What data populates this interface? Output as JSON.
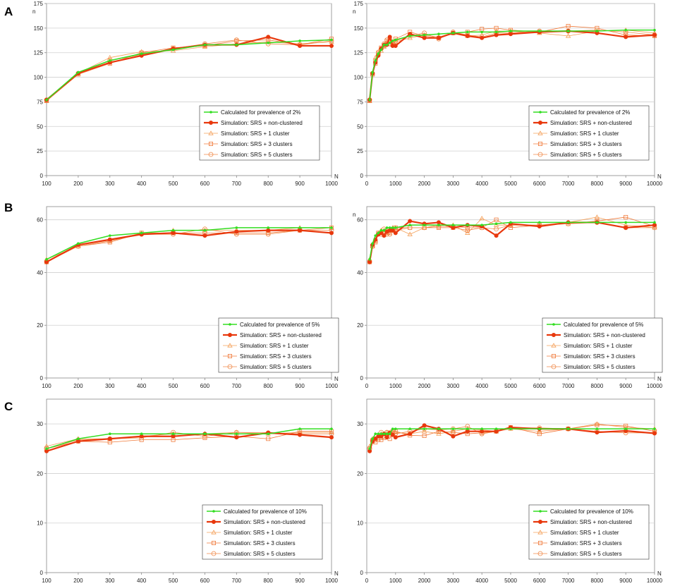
{
  "figure": {
    "panel_letters": [
      "A",
      "B",
      "C"
    ],
    "series_names": [
      "calculated",
      "srs_nonclustered",
      "srs_1cluster",
      "srs_3clusters",
      "srs_5clusters"
    ],
    "colors": {
      "calculated": "#33dd22",
      "srs_nonclustered": "#e8380d",
      "srs_1cluster": "#f4a05a",
      "srs_3clusters": "#f07a3a",
      "srs_5clusters": "#f08a4a",
      "grid": "#d0d0d0",
      "axis": "#888888"
    }
  },
  "chart_data": [
    {
      "type": "line",
      "panel": "A",
      "xlabel": "N",
      "ylabel": "n",
      "xlim": [
        100,
        1000
      ],
      "ylim": [
        0,
        175
      ],
      "xticks": [
        100,
        200,
        300,
        400,
        500,
        600,
        700,
        800,
        900,
        1000
      ],
      "yticks": [
        0,
        25,
        50,
        75,
        100,
        125,
        150,
        175
      ],
      "grid": true,
      "legend_position": "center-right",
      "x": [
        100,
        200,
        300,
        400,
        500,
        600,
        700,
        800,
        900,
        1000
      ],
      "series": [
        {
          "name": "Calculated for prevalence of 2%",
          "values": [
            77,
            105,
            117,
            124,
            128,
            133,
            133,
            135,
            137,
            138
          ]
        },
        {
          "name": "Simulation: SRS + non-clustered",
          "values": [
            77,
            104,
            115,
            122,
            129,
            133,
            133,
            141,
            132,
            132
          ]
        },
        {
          "name": "Simulation: SRS + 1 cluster",
          "values": [
            76,
            104,
            120,
            126,
            127,
            131,
            134,
            136,
            134,
            136
          ]
        },
        {
          "name": "Simulation: SRS + 3 clusters",
          "values": [
            76,
            103,
            114,
            125,
            130,
            132,
            137,
            138,
            133,
            139
          ]
        },
        {
          "name": "Simulation: SRS + 5 clusters",
          "values": [
            77,
            104,
            117,
            123,
            129,
            134,
            138,
            134,
            133,
            137
          ]
        }
      ]
    },
    {
      "type": "line",
      "panel": "A",
      "xlabel": "N",
      "ylabel": "n",
      "xlim": [
        0,
        10000
      ],
      "ylim": [
        0,
        175
      ],
      "xticks": [
        0,
        1000,
        2000,
        3000,
        4000,
        5000,
        6000,
        7000,
        8000,
        9000,
        10000
      ],
      "yticks": [
        0,
        25,
        50,
        75,
        100,
        125,
        150,
        175
      ],
      "grid": true,
      "legend_position": "center-right",
      "x": [
        100,
        200,
        300,
        400,
        500,
        600,
        700,
        800,
        900,
        1000,
        1500,
        2000,
        2500,
        3000,
        3500,
        4000,
        4500,
        5000,
        6000,
        7000,
        8000,
        9000,
        10000
      ],
      "series": [
        {
          "name": "Calculated for prevalence of 2%",
          "values": [
            77,
            105,
            117,
            124,
            128,
            133,
            133,
            135,
            137,
            138,
            142,
            143,
            144,
            145,
            146,
            146,
            146,
            147,
            147,
            147,
            147,
            148,
            148
          ]
        },
        {
          "name": "Simulation: SRS + non-clustered",
          "values": [
            77,
            104,
            115,
            122,
            129,
            133,
            133,
            141,
            132,
            132,
            144,
            140,
            140,
            145,
            142,
            140,
            143,
            144,
            146,
            147,
            145,
            141,
            143
          ]
        },
        {
          "name": "Simulation: SRS + 1 cluster",
          "values": [
            76,
            104,
            120,
            126,
            127,
            131,
            134,
            136,
            134,
            136,
            140,
            143,
            141,
            145,
            142,
            143,
            147,
            147,
            145,
            142,
            147,
            148,
            145
          ]
        },
        {
          "name": "Simulation: SRS + 3 clusters",
          "values": [
            76,
            103,
            114,
            125,
            130,
            132,
            137,
            138,
            133,
            139,
            146,
            142,
            140,
            145,
            146,
            149,
            150,
            148,
            146,
            152,
            150,
            143,
            142
          ]
        },
        {
          "name": "Simulation: SRS + 5 clusters",
          "values": [
            77,
            104,
            117,
            123,
            129,
            134,
            138,
            134,
            133,
            137,
            142,
            145,
            139,
            146,
            143,
            141,
            145,
            145,
            147,
            147,
            148,
            146,
            143
          ]
        }
      ]
    },
    {
      "type": "line",
      "panel": "B",
      "xlabel": "N",
      "ylabel": "",
      "xlim": [
        100,
        1000
      ],
      "ylim": [
        0,
        65
      ],
      "xticks": [
        100,
        200,
        300,
        400,
        500,
        600,
        700,
        800,
        900,
        1000
      ],
      "yticks": [
        0,
        20,
        40,
        60
      ],
      "grid": true,
      "legend_position": "bottom-right",
      "x": [
        100,
        200,
        300,
        400,
        500,
        600,
        700,
        800,
        900,
        1000
      ],
      "series": [
        {
          "name": "Calculated for prevalence of 5%",
          "values": [
            45,
            51,
            54,
            55,
            56,
            56,
            57,
            57,
            57,
            57
          ]
        },
        {
          "name": "Simulation: SRS + non-clustered",
          "values": [
            44,
            50.5,
            52.5,
            54.5,
            55,
            54,
            55.5,
            56,
            56,
            55
          ]
        },
        {
          "name": "Simulation: SRS + 1 cluster",
          "values": [
            45,
            50,
            52,
            55,
            56,
            56,
            56,
            56,
            57,
            57
          ]
        },
        {
          "name": "Simulation: SRS + 3 clusters",
          "values": [
            44,
            50,
            51.5,
            55,
            55,
            55,
            55,
            55,
            56,
            57
          ]
        },
        {
          "name": "Simulation: SRS + 5 clusters",
          "values": [
            44,
            50,
            52,
            54.5,
            54.5,
            56.5,
            54.5,
            54.5,
            56,
            56
          ]
        }
      ]
    },
    {
      "type": "line",
      "panel": "B",
      "xlabel": "N",
      "ylabel": "n",
      "xlim": [
        0,
        10000
      ],
      "ylim": [
        0,
        65
      ],
      "xticks": [
        0,
        1000,
        2000,
        3000,
        4000,
        5000,
        6000,
        7000,
        8000,
        9000,
        10000
      ],
      "yticks": [
        0,
        20,
        40,
        60
      ],
      "grid": true,
      "legend_position": "bottom-right",
      "x": [
        100,
        200,
        300,
        400,
        500,
        600,
        700,
        800,
        900,
        1000,
        1500,
        2000,
        2500,
        3000,
        3500,
        4000,
        4500,
        5000,
        6000,
        7000,
        8000,
        9000,
        10000
      ],
      "series": [
        {
          "name": "Calculated for prevalence of 5%",
          "values": [
            45,
            51,
            54,
            55,
            56,
            56,
            57,
            57,
            57,
            57,
            58,
            58,
            58,
            58,
            58,
            58,
            58.5,
            59,
            59,
            59,
            59,
            59,
            59
          ]
        },
        {
          "name": "Simulation: SRS + non-clustered",
          "values": [
            44,
            50.5,
            52.5,
            54.5,
            55,
            54,
            55.5,
            56,
            56,
            55,
            59.5,
            58.5,
            59,
            57,
            58,
            57.5,
            54,
            58.5,
            57.5,
            59,
            59,
            57,
            58
          ]
        },
        {
          "name": "Simulation: SRS + 1 cluster",
          "values": [
            45,
            50,
            52,
            55,
            56,
            56,
            56,
            56,
            57,
            57,
            54.5,
            57,
            58,
            58,
            55,
            60.5,
            58,
            58,
            58,
            59,
            61,
            58,
            57
          ]
        },
        {
          "name": "Simulation: SRS + 3 clusters",
          "values": [
            44,
            50,
            51.5,
            55,
            55,
            55,
            55,
            55,
            56,
            57,
            57,
            57,
            57,
            57,
            56,
            57,
            60,
            57,
            58,
            58.5,
            59.5,
            61,
            57.5
          ]
        },
        {
          "name": "Simulation: SRS + 5 clusters",
          "values": [
            44,
            50,
            52,
            54.5,
            54.5,
            56.5,
            54.5,
            54.5,
            56,
            56,
            57,
            57,
            57.5,
            57.5,
            57,
            57,
            56.5,
            58,
            58,
            58.5,
            59,
            57,
            57
          ]
        }
      ]
    },
    {
      "type": "line",
      "panel": "C",
      "xlabel": "N",
      "ylabel": "",
      "xlim": [
        100,
        1000
      ],
      "ylim": [
        0,
        35
      ],
      "xticks": [
        100,
        200,
        300,
        400,
        500,
        600,
        700,
        800,
        900,
        1000
      ],
      "yticks": [
        0,
        10,
        20,
        30
      ],
      "grid": true,
      "legend_position": "bottom-right",
      "x": [
        100,
        200,
        300,
        400,
        500,
        600,
        700,
        800,
        900,
        1000
      ],
      "series": [
        {
          "name": "Calculated for prevalence of 10%",
          "values": [
            25,
            27,
            28,
            28,
            28,
            28,
            28,
            28,
            29,
            29
          ]
        },
        {
          "name": "Simulation: SRS + non-clustered",
          "values": [
            24.5,
            26.5,
            27,
            27.5,
            27.5,
            28,
            27.3,
            28.2,
            27.8,
            27.3
          ]
        },
        {
          "name": "Simulation: SRS + 1 cluster",
          "values": [
            25.5,
            27,
            27,
            27.5,
            28,
            28,
            28.3,
            28,
            28.3,
            28.3
          ]
        },
        {
          "name": "Simulation: SRS + 3 clusters",
          "values": [
            25,
            26.5,
            26.3,
            26.8,
            26.8,
            27.2,
            27.5,
            27,
            28.5,
            28.5
          ]
        },
        {
          "name": "Simulation: SRS + 5 clusters",
          "values": [
            25,
            26.8,
            27,
            27.2,
            28.3,
            27.5,
            28.3,
            28.2,
            28,
            28
          ]
        }
      ]
    },
    {
      "type": "line",
      "panel": "C",
      "xlabel": "N",
      "ylabel": "",
      "xlim": [
        0,
        10000
      ],
      "ylim": [
        0,
        35
      ],
      "xticks": [
        0,
        1000,
        2000,
        3000,
        4000,
        5000,
        6000,
        7000,
        8000,
        9000,
        10000
      ],
      "yticks": [
        0,
        10,
        20,
        30
      ],
      "grid": true,
      "legend_position": "bottom-right",
      "x": [
        100,
        200,
        300,
        400,
        500,
        600,
        700,
        800,
        900,
        1000,
        1500,
        2000,
        2500,
        3000,
        3500,
        4000,
        4500,
        5000,
        6000,
        7000,
        8000,
        9000,
        10000
      ],
      "series": [
        {
          "name": "Calculated for prevalence of 10%",
          "values": [
            25,
            27,
            28,
            28,
            28,
            28,
            28,
            28,
            29,
            29,
            29,
            29,
            29,
            29,
            29,
            29,
            29,
            29,
            29,
            29,
            29,
            29,
            29
          ]
        },
        {
          "name": "Simulation: SRS + non-clustered",
          "values": [
            24.5,
            26.5,
            27,
            27.5,
            27.5,
            28,
            27.3,
            28.2,
            27.8,
            27.3,
            28,
            29.7,
            29,
            27.5,
            28.5,
            28.5,
            28.5,
            29.3,
            29,
            29,
            28.3,
            28.6,
            28.1
          ]
        },
        {
          "name": "Simulation: SRS + 1 cluster",
          "values": [
            25.5,
            27,
            27,
            27.5,
            28,
            28,
            28.3,
            28,
            28.3,
            28.3,
            28,
            28.5,
            28,
            28.5,
            29,
            28.8,
            28.5,
            29,
            28.5,
            29,
            30,
            29.3,
            29
          ]
        },
        {
          "name": "Simulation: SRS + 3 clusters",
          "values": [
            25,
            26.5,
            26.3,
            26.8,
            26.8,
            27.2,
            27.5,
            27,
            28.5,
            28.5,
            27.7,
            27.6,
            28.5,
            28.3,
            28,
            28.2,
            28.5,
            29.3,
            28,
            29,
            29.8,
            29.6,
            28.5
          ]
        },
        {
          "name": "Simulation: SRS + 5 clusters",
          "values": [
            25,
            26.8,
            27,
            27.2,
            28.3,
            27.5,
            28.3,
            28.2,
            28,
            28,
            28.5,
            29,
            28.8,
            29,
            29.5,
            28,
            28.5,
            29.2,
            29.2,
            29,
            28.5,
            28.2,
            28.2
          ]
        }
      ]
    }
  ]
}
